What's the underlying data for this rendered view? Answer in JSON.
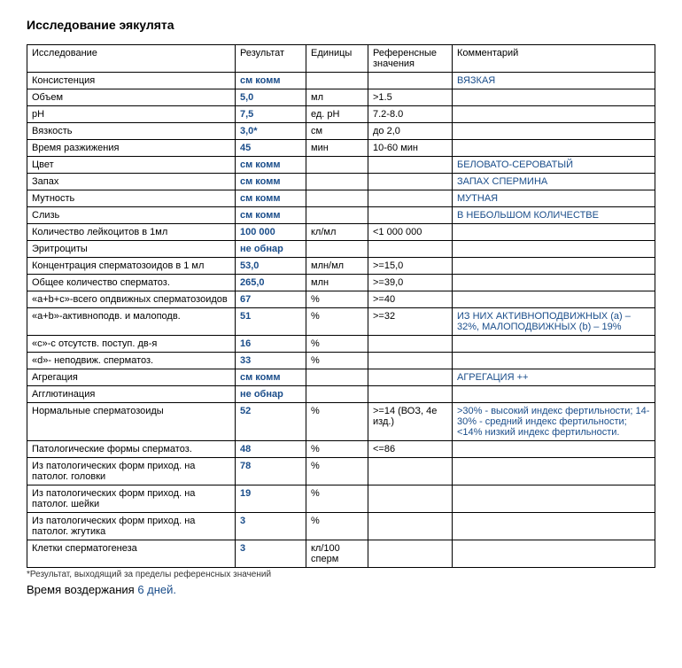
{
  "title": "Исследование эякулята",
  "columns": [
    "Исследование",
    "Результат",
    "Единицы",
    "Референсные значения",
    "Комментарий"
  ],
  "rows": [
    {
      "test": "Консистенция",
      "result": "см комм",
      "units": "",
      "ref": "",
      "comment": "ВЯЗКАЯ"
    },
    {
      "test": "Объем",
      "result": "5,0",
      "units": "мл",
      "ref": ">1.5",
      "comment": ""
    },
    {
      "test": "pH",
      "result": "7,5",
      "units": "ед. pH",
      "ref": "7.2-8.0",
      "comment": ""
    },
    {
      "test": "Вязкость",
      "result": "3,0*",
      "units": "см",
      "ref": "до 2,0",
      "comment": ""
    },
    {
      "test": "Время разжижения",
      "result": "45",
      "units": "мин",
      "ref": "10-60 мин",
      "comment": ""
    },
    {
      "test": "Цвет",
      "result": "см комм",
      "units": "",
      "ref": "",
      "comment": "БЕЛОВАТО-СЕРОВАТЫЙ"
    },
    {
      "test": "Запах",
      "result": "см комм",
      "units": "",
      "ref": "",
      "comment": "ЗАПАХ СПЕРМИНА"
    },
    {
      "test": "Мутность",
      "result": "см комм",
      "units": "",
      "ref": "",
      "comment": "МУТНАЯ"
    },
    {
      "test": "Слизь",
      "result": "см комм",
      "units": "",
      "ref": "",
      "comment": "В НЕБОЛЬШОМ КОЛИЧЕСТВЕ"
    },
    {
      "test": "Количество лейкоцитов в 1мл",
      "result": "100 000",
      "units": "кл/мл",
      "ref": "<1 000 000",
      "comment": ""
    },
    {
      "test": "Эритроциты",
      "result": "не обнар",
      "units": "",
      "ref": "",
      "comment": ""
    },
    {
      "test": "Концентрация сперматозоидов в 1 мл",
      "result": "53,0",
      "units": "млн/мл",
      "ref": ">=15,0",
      "comment": ""
    },
    {
      "test": "Общее количество сперматоз.",
      "result": "265,0",
      "units": "млн",
      "ref": ">=39,0",
      "comment": ""
    },
    {
      "test": "«a+b+c»-всего опдвижных сперматозоидов",
      "result": "67",
      "units": "%",
      "ref": ">=40",
      "comment": ""
    },
    {
      "test": "«a+b»-активноподв. и малоподв.",
      "result": "51",
      "units": "%",
      "ref": ">=32",
      "comment": "ИЗ НИХ АКТИВНОПОДВИЖНЫХ (a) – 32%, МАЛОПОДВИЖНЫХ (b) – 19%"
    },
    {
      "test": "«с»-с отсутств. поступ. дв-я",
      "result": "16",
      "units": "%",
      "ref": "",
      "comment": ""
    },
    {
      "test": "«d»- неподвиж. сперматоз.",
      "result": "33",
      "units": "%",
      "ref": "",
      "comment": ""
    },
    {
      "test": "Агрегация",
      "result": "см комм",
      "units": "",
      "ref": "",
      "comment": "АГРЕГАЦИЯ ++"
    },
    {
      "test": "Агглютинация",
      "result": "не обнар",
      "units": "",
      "ref": "",
      "comment": ""
    },
    {
      "test": "Нормальные сперматозоиды",
      "result": "52",
      "units": "%",
      "ref": ">=14 (ВОЗ, 4е изд.)",
      "comment": ">30% - высокий индекс фертильности; 14-30% - средний индекс фертильности; <14% низкий индекс фертильности."
    },
    {
      "test": "Патологические формы сперматоз.",
      "result": "48",
      "units": "%",
      "ref": "<=86",
      "comment": ""
    },
    {
      "test": "Из патологических форм приход. на патолог. головки",
      "result": "78",
      "units": "%",
      "ref": "",
      "comment": ""
    },
    {
      "test": "Из патологических форм приход. на патолог. шейки",
      "result": "19",
      "units": "%",
      "ref": "",
      "comment": ""
    },
    {
      "test": "Из патологических форм приход. на патолог. жгутика",
      "result": "3",
      "units": "%",
      "ref": "",
      "comment": ""
    },
    {
      "test": "Клетки сперматогенеза",
      "result": "3",
      "units": "кл/100 сперм",
      "ref": "",
      "comment": ""
    }
  ],
  "footnote": "*Результат, выходящий за пределы референсных значений",
  "abstinence_label": "Время воздержания",
  "abstinence_value": "6 дней."
}
